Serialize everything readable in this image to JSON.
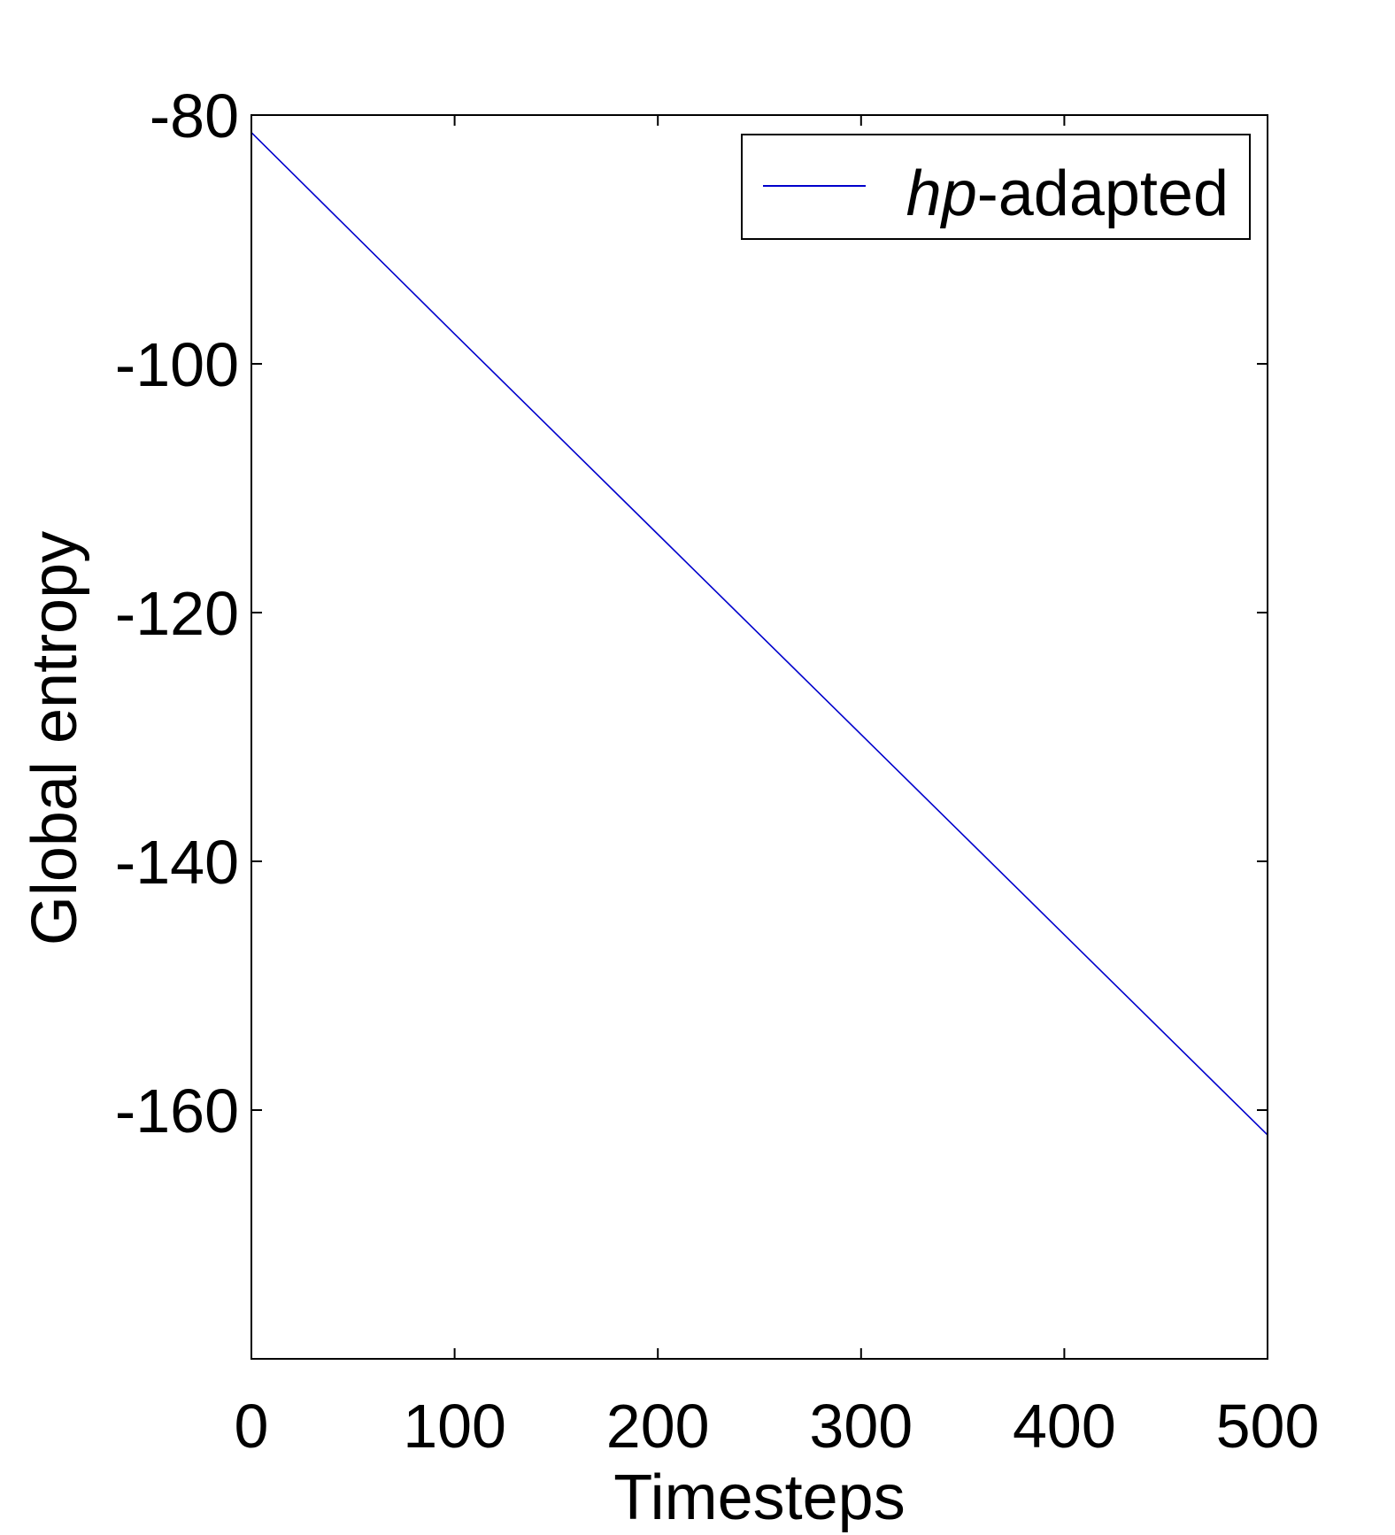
{
  "chart_data": {
    "type": "line",
    "title": "",
    "xlabel": "Timesteps",
    "ylabel": "Global entropy",
    "xlim": [
      0,
      500
    ],
    "ylim": [
      -180,
      -80
    ],
    "x_ticks": [
      0,
      100,
      200,
      300,
      400,
      500
    ],
    "y_ticks": [
      -160,
      -140,
      -120,
      -100,
      -80
    ],
    "x_tick_labels": [
      "0",
      "100",
      "200",
      "300",
      "400",
      "500"
    ],
    "y_tick_labels": [
      "-160",
      "-140",
      "-120",
      "-100",
      "-80"
    ],
    "grid": false,
    "legend": {
      "position": "top-right",
      "entries": [
        {
          "name_italic": "hp",
          "name_rest": "-adapted",
          "color": "#0000cc"
        }
      ]
    },
    "series": [
      {
        "name": "hp-adapted",
        "color": "#0000cc",
        "x": [
          0,
          100,
          200,
          300,
          400,
          500
        ],
        "y": [
          -81.4,
          -97.6,
          -113.7,
          -129.8,
          -145.9,
          -162.0
        ]
      }
    ]
  }
}
